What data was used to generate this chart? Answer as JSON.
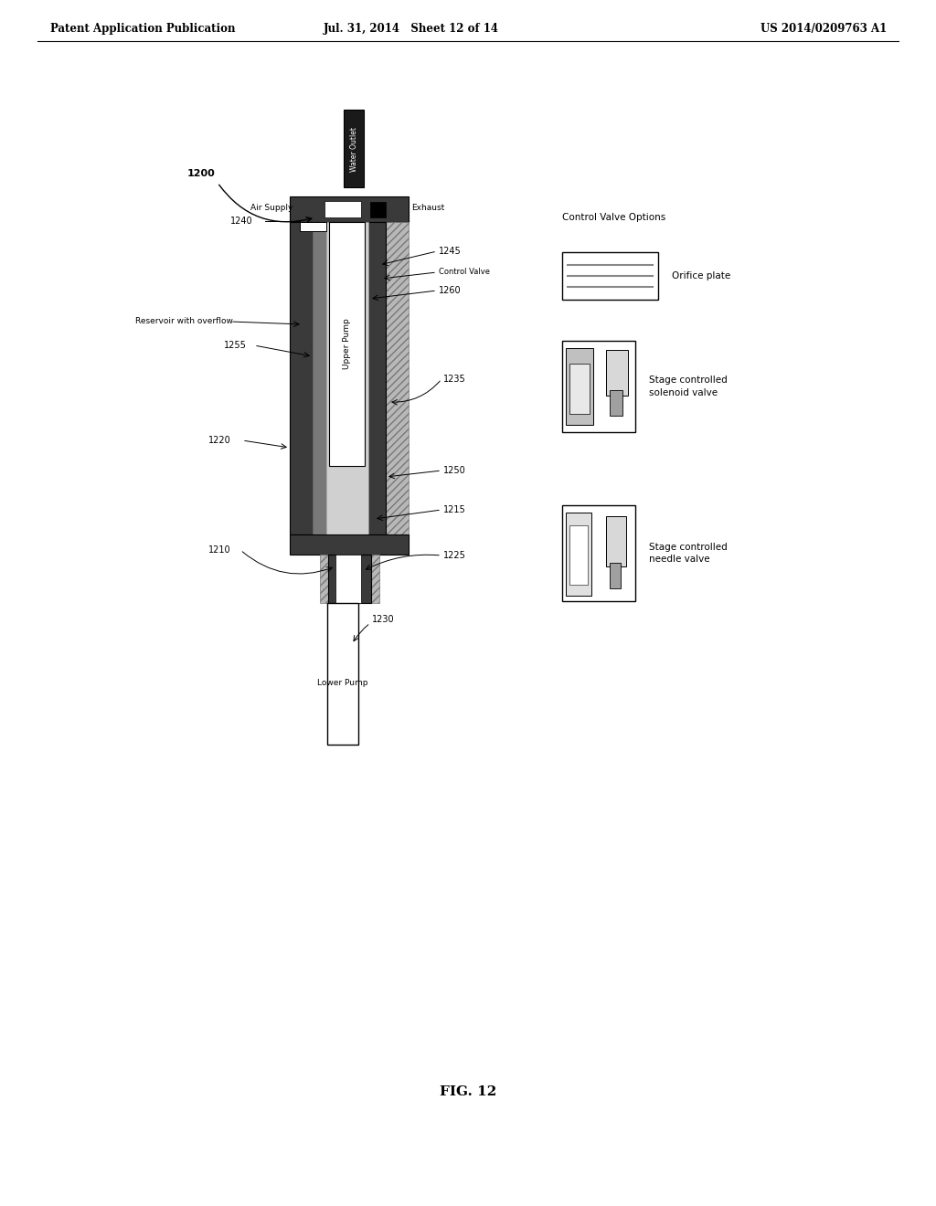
{
  "bg_color": "#ffffff",
  "header_left": "Patent Application Publication",
  "header_mid": "Jul. 31, 2014   Sheet 12 of 14",
  "header_right": "US 2014/0209763 A1",
  "fig_label": "FIG. 12",
  "colors": {
    "dark": "#3a3a3a",
    "medium": "#787878",
    "light": "#b8b8b8",
    "white": "#ffffff",
    "black": "#000000",
    "very_dark": "#1a1a1a"
  }
}
